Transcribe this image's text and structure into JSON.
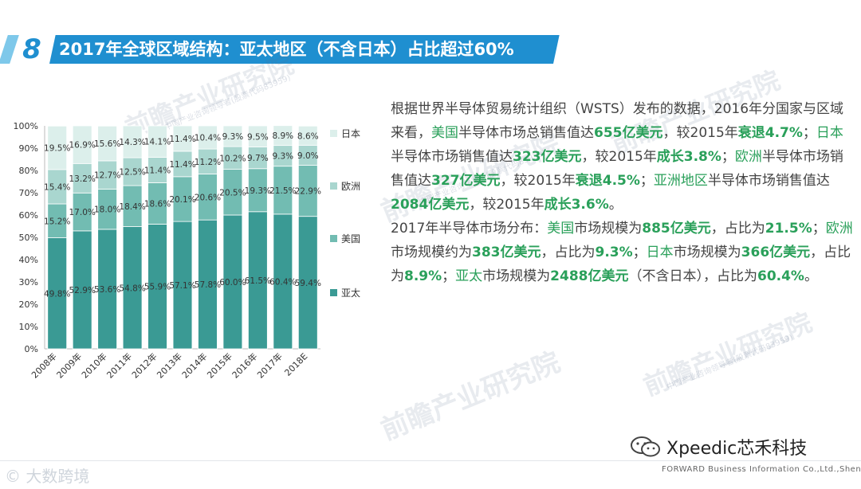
{
  "header": {
    "number": "8",
    "title": "2017年全球区域结构：亚太地区（不含日本）占比超过60%"
  },
  "chart_data": {
    "type": "bar",
    "stacked": true,
    "categories": [
      "2008年",
      "2009年",
      "2010年",
      "2011年",
      "2012年",
      "2013年",
      "2014年",
      "2015年",
      "2016年",
      "2017年",
      "2018E"
    ],
    "series": [
      {
        "name": "亚太",
        "color": "#3a9a94",
        "values": [
          49.8,
          52.9,
          53.6,
          54.8,
          55.9,
          57.1,
          57.8,
          60.0,
          61.5,
          60.4,
          59.4
        ]
      },
      {
        "name": "美国",
        "color": "#72bcb2",
        "values": [
          15.2,
          17.0,
          18.0,
          18.4,
          18.6,
          20.1,
          20.6,
          20.5,
          19.3,
          21.5,
          22.9
        ]
      },
      {
        "name": "欧洲",
        "color": "#a9d6cf",
        "values": [
          15.4,
          13.2,
          12.7,
          12.5,
          11.4,
          11.4,
          11.2,
          10.2,
          9.7,
          9.3,
          9.0
        ]
      },
      {
        "name": "日本",
        "color": "#dcefeb",
        "values": [
          19.5,
          16.9,
          15.6,
          14.3,
          14.1,
          11.4,
          10.4,
          9.3,
          9.5,
          8.9,
          8.6
        ]
      }
    ],
    "yticks": [
      "0%",
      "10%",
      "20%",
      "30%",
      "40%",
      "50%",
      "60%",
      "70%",
      "80%",
      "90%",
      "100%"
    ],
    "ylim": [
      0,
      100
    ],
    "legend_position": "right",
    "grid": false
  },
  "text": {
    "p1": [
      {
        "t": "根据世界半导体贸易统计组织（WSTS）发布的数据，2016年分国家与区域来看，"
      },
      {
        "t": "美国",
        "c": "hl2"
      },
      {
        "t": "半导体市场总销售值达"
      },
      {
        "t": "655亿美元",
        "c": "hl"
      },
      {
        "t": "，较2015年"
      },
      {
        "t": "衰退4.7%",
        "c": "hl"
      },
      {
        "t": "；"
      },
      {
        "t": "日本",
        "c": "hl2"
      },
      {
        "t": "半导体市场销售值达"
      },
      {
        "t": "323亿美元",
        "c": "hl"
      },
      {
        "t": "，较2015年"
      },
      {
        "t": "成长3.8%",
        "c": "hl"
      },
      {
        "t": "；"
      },
      {
        "t": "欧洲",
        "c": "hl2"
      },
      {
        "t": "半导体市场销售值达"
      },
      {
        "t": "327亿美元",
        "c": "hl"
      },
      {
        "t": "，较2015年"
      },
      {
        "t": "衰退4.5%",
        "c": "hl"
      },
      {
        "t": "；"
      },
      {
        "t": "亚洲地区",
        "c": "hl2"
      },
      {
        "t": "半导体市场销售值达"
      },
      {
        "t": "2084亿美元",
        "c": "hl"
      },
      {
        "t": "，较2015年"
      },
      {
        "t": "成长3.6%",
        "c": "hl"
      },
      {
        "t": "。"
      }
    ],
    "p2": [
      {
        "t": "2017年半导体市场分布："
      },
      {
        "t": "美国",
        "c": "hl2"
      },
      {
        "t": "市场规模为"
      },
      {
        "t": "885亿美元",
        "c": "hl"
      },
      {
        "t": "，占比为"
      },
      {
        "t": "21.5%",
        "c": "hl"
      },
      {
        "t": "；"
      },
      {
        "t": "欧洲",
        "c": "hl2"
      },
      {
        "t": "市场规模约为"
      },
      {
        "t": "383亿美元",
        "c": "hl"
      },
      {
        "t": "，占比为"
      },
      {
        "t": "9.3%",
        "c": "hl"
      },
      {
        "t": "；"
      },
      {
        "t": "日本",
        "c": "hl2"
      },
      {
        "t": "市场规模为"
      },
      {
        "t": "366亿美元",
        "c": "hl"
      },
      {
        "t": "，占比为"
      },
      {
        "t": "8.9%",
        "c": "hl"
      },
      {
        "t": "；"
      },
      {
        "t": "亚太",
        "c": "hl2"
      },
      {
        "t": "市场规模为"
      },
      {
        "t": "2488亿美元",
        "c": "hl"
      },
      {
        "t": "（不含日本），占比为"
      },
      {
        "t": "60.4%",
        "c": "hl"
      },
      {
        "t": "。"
      }
    ]
  },
  "watermark": {
    "brand": "前瞻产业研究院",
    "sub": "中国产业咨询领导者(股票代码83959)"
  },
  "footer": {
    "wechat_account": "Xpeedic芯禾科技",
    "company": "FORWARD Business Information Co.,Ltd.,Shenzhen",
    "left_watermark": "大数跨境"
  }
}
